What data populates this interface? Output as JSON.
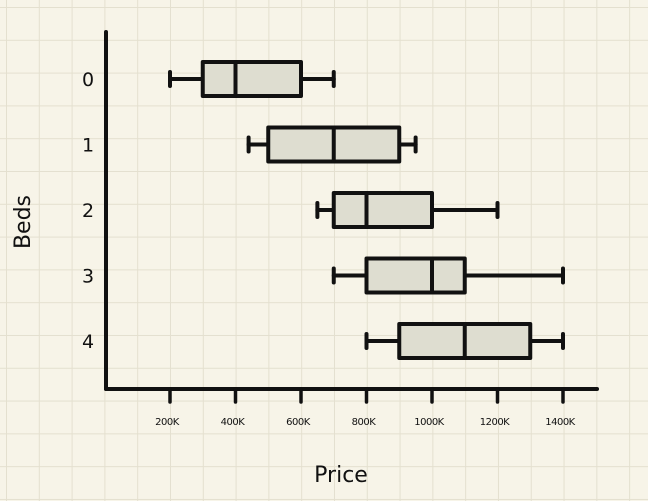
{
  "chart_data": {
    "type": "boxplot",
    "orientation": "horizontal",
    "xlabel": "Price",
    "ylabel": "Beds",
    "xticks": [
      200000,
      400000,
      600000,
      800000,
      1000000,
      1200000,
      1400000
    ],
    "xtick_labels": [
      "200K",
      "400K",
      "600K",
      "800K",
      "1000K",
      "1200K",
      "1400K"
    ],
    "categories": [
      "0",
      "1",
      "2",
      "3",
      "4"
    ],
    "boxes": [
      {
        "category": "0",
        "min": 200000,
        "q1": 300000,
        "median": 400000,
        "q3": 600000,
        "max": 700000
      },
      {
        "category": "1",
        "min": 440000,
        "q1": 500000,
        "median": 700000,
        "q3": 900000,
        "max": 950000
      },
      {
        "category": "2",
        "min": 650000,
        "q1": 700000,
        "median": 800000,
        "q3": 1000000,
        "max": 1200000
      },
      {
        "category": "3",
        "min": 700000,
        "q1": 800000,
        "median": 1000000,
        "q3": 1100000,
        "max": 1400000
      },
      {
        "category": "4",
        "min": 800000,
        "q1": 900000,
        "median": 1100000,
        "q3": 1300000,
        "max": 1400000
      }
    ],
    "box_color": "#deddd0",
    "line_color": "#111111",
    "grid": true
  }
}
